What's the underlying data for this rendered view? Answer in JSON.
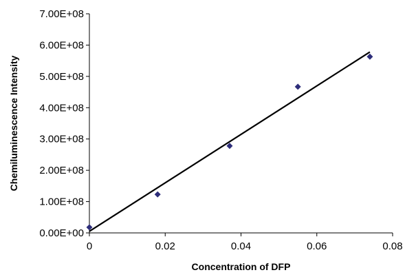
{
  "chart_data": {
    "type": "scatter",
    "title": "",
    "xlabel": "Concentration of DFP",
    "ylabel": "Chemiluminescence Intensity",
    "xlim": [
      0,
      0.08
    ],
    "ylim": [
      0,
      700000000
    ],
    "x_ticks": [
      0,
      0.02,
      0.04,
      0.06,
      0.08
    ],
    "x_tick_labels": [
      "0",
      "0.02",
      "0.04",
      "0.06",
      "0.08"
    ],
    "y_ticks": [
      0,
      100000000,
      200000000,
      300000000,
      400000000,
      500000000,
      600000000,
      700000000
    ],
    "y_tick_labels": [
      "0.00E+00",
      "1.00E+08",
      "2.00E+08",
      "3.00E+08",
      "4.00E+08",
      "5.00E+08",
      "6.00E+08",
      "7.00E+08"
    ],
    "grid": false,
    "legend": "none",
    "series": [
      {
        "marker": "diamond",
        "color": "#2e2e7a",
        "x": [
          0,
          0.018,
          0.037,
          0.055,
          0.074
        ],
        "y": [
          18000000,
          123000000,
          278000000,
          467000000,
          563000000
        ]
      }
    ],
    "trendline": {
      "type": "linear",
      "color": "#000000",
      "x": [
        0,
        0.074
      ],
      "y": [
        5000000,
        578000000
      ]
    }
  }
}
